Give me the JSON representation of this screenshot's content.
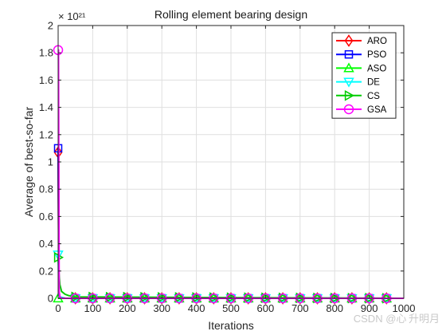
{
  "chart_data": {
    "type": "line",
    "title": "Rolling element bearing design",
    "xlabel": "Iterations",
    "ylabel": "Average of best-so-far",
    "y_exponent": "× 10²¹",
    "xlim": [
      0,
      1000
    ],
    "ylim": [
      0,
      2
    ],
    "x_ticks": [
      "0",
      "100",
      "200",
      "300",
      "400",
      "500",
      "600",
      "700",
      "800",
      "900",
      "1000"
    ],
    "y_ticks": [
      "0",
      "0.2",
      "0.4",
      "0.6",
      "0.8",
      "1",
      "1.2",
      "1.4",
      "1.6",
      "1.8",
      "2"
    ],
    "grid": true,
    "legend_position": "top-right",
    "marker_x": [
      0,
      50,
      100,
      150,
      200,
      250,
      300,
      350,
      400,
      450,
      500,
      550,
      600,
      650,
      700,
      750,
      800,
      850,
      900,
      950
    ],
    "series": [
      {
        "name": "ARO",
        "color": "#ff0000",
        "marker": "diamond",
        "x": [
          0,
          2,
          5,
          20,
          1000
        ],
        "y": [
          1.07,
          0.05,
          0.01,
          0.0,
          0.0
        ]
      },
      {
        "name": "PSO",
        "color": "#0000ff",
        "marker": "square",
        "x": [
          0,
          2,
          5,
          20,
          1000
        ],
        "y": [
          1.1,
          0.05,
          0.01,
          0.0,
          0.0
        ]
      },
      {
        "name": "ASO",
        "color": "#00ff00",
        "marker": "triangle-up",
        "x": [
          0,
          2,
          5,
          20,
          1000
        ],
        "y": [
          0.0,
          0.0,
          0.0,
          0.0,
          0.0
        ]
      },
      {
        "name": "DE",
        "color": "#00ffff",
        "marker": "triangle-down",
        "x": [
          0,
          2,
          5,
          20,
          1000
        ],
        "y": [
          0.32,
          0.05,
          0.01,
          0.0,
          0.0
        ]
      },
      {
        "name": "CS",
        "color": "#00cc00",
        "marker": "triangle-right",
        "x": [
          0,
          2,
          5,
          10,
          20,
          30,
          50,
          1000
        ],
        "y": [
          0.3,
          0.2,
          0.1,
          0.05,
          0.03,
          0.02,
          0.01,
          0.0
        ]
      },
      {
        "name": "GSA",
        "color": "#ff00ff",
        "marker": "circle",
        "x": [
          0,
          1,
          3,
          5,
          10,
          1000
        ],
        "y": [
          1.82,
          1.82,
          0.05,
          0.01,
          0.0,
          0.0
        ]
      }
    ]
  },
  "watermark": "CSDN @心 升明月"
}
